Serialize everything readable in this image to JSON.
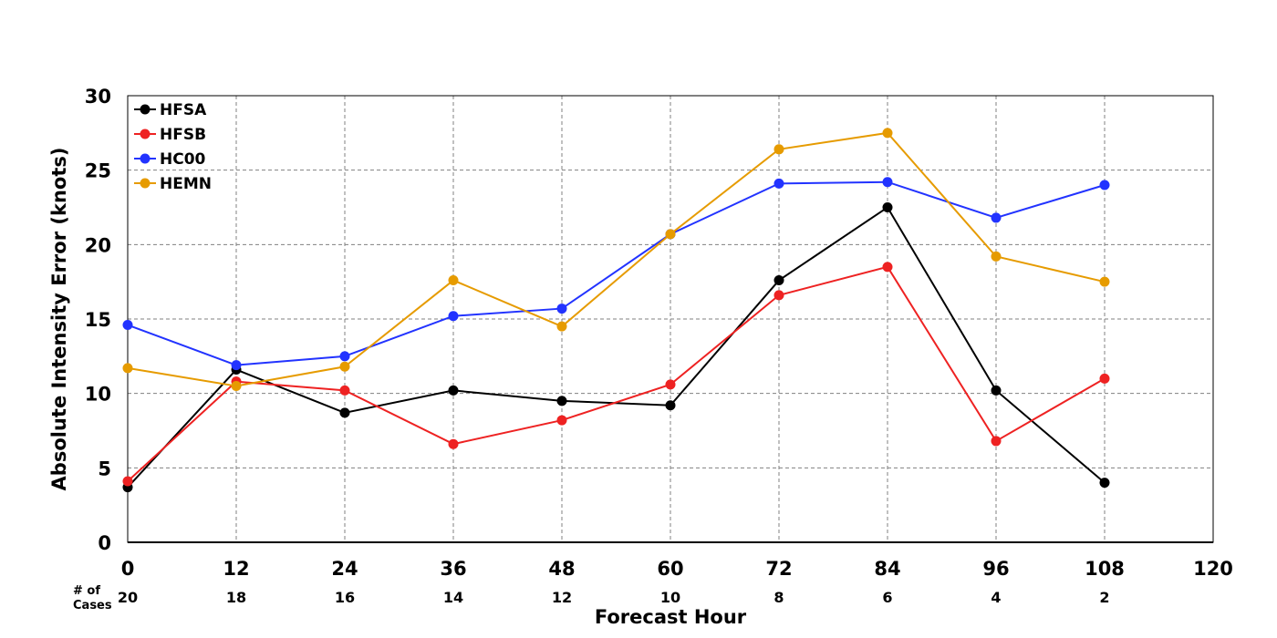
{
  "chart_data": {
    "type": "line",
    "xlabel": "Forecast Hour",
    "ylabel": "Absolute Intensity Error (knots)",
    "xlim": [
      0,
      120
    ],
    "ylim": [
      0,
      30
    ],
    "x_ticks": [
      0,
      12,
      24,
      36,
      48,
      60,
      72,
      84,
      96,
      108,
      120
    ],
    "y_ticks": [
      0,
      5,
      10,
      15,
      20,
      25,
      30
    ],
    "grid": true,
    "legend_position": "top-left",
    "x": [
      0,
      12,
      24,
      36,
      48,
      60,
      72,
      84,
      96,
      108
    ],
    "series": [
      {
        "name": "HFSA",
        "color": "#000000",
        "values": [
          3.7,
          11.6,
          8.7,
          10.2,
          9.5,
          9.2,
          17.6,
          22.5,
          10.2,
          4.0
        ]
      },
      {
        "name": "HFSB",
        "color": "#ee2222",
        "values": [
          4.1,
          10.8,
          10.2,
          6.6,
          8.2,
          10.6,
          16.6,
          18.5,
          6.8,
          11.0
        ]
      },
      {
        "name": "HC00",
        "color": "#2233ff",
        "values": [
          14.6,
          11.9,
          12.5,
          15.2,
          15.7,
          20.7,
          24.1,
          24.2,
          21.8,
          24.0
        ]
      },
      {
        "name": "HEMN",
        "color": "#e69b00",
        "values": [
          11.7,
          10.5,
          11.8,
          17.6,
          14.5,
          20.7,
          26.4,
          27.5,
          19.2,
          17.5
        ]
      }
    ],
    "cases": {
      "label_line1": "# of",
      "label_line2": "Cases",
      "values": [
        "20",
        "18",
        "16",
        "14",
        "12",
        "10",
        "8",
        "6",
        "4",
        "2"
      ]
    }
  }
}
